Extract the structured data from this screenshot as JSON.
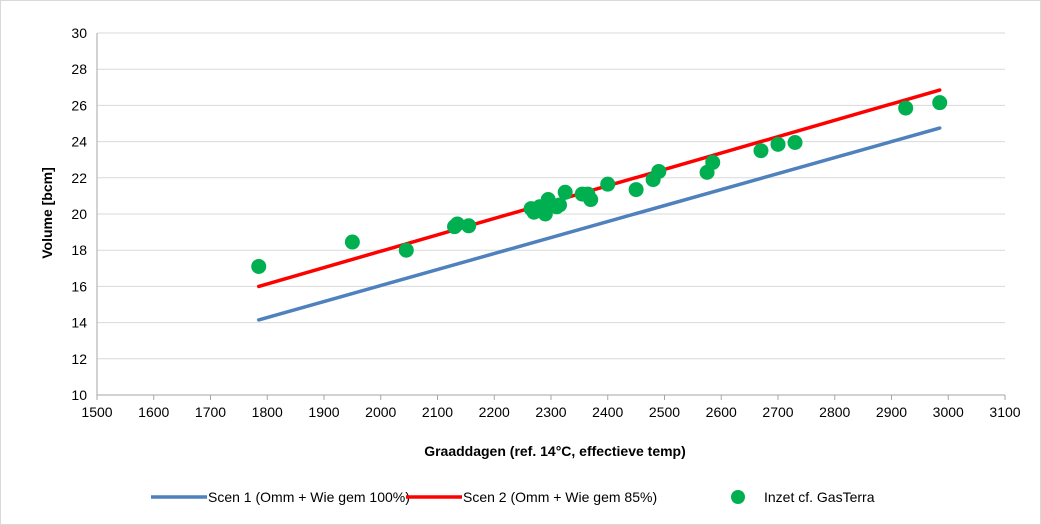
{
  "chart_data": {
    "type": "scatter",
    "xlabel": "Graaddagen (ref. 14°C, effectieve temp)",
    "ylabel": "Volume [bcm]",
    "xlim": [
      1500,
      3100
    ],
    "ylim": [
      10,
      30
    ],
    "xticks": [
      1500,
      1600,
      1700,
      1800,
      1900,
      2000,
      2100,
      2200,
      2300,
      2400,
      2500,
      2600,
      2700,
      2800,
      2900,
      3000,
      3100
    ],
    "yticks": [
      10,
      12,
      14,
      16,
      18,
      20,
      22,
      24,
      26,
      28,
      30
    ],
    "grid": "horizontal",
    "legend_position": "bottom",
    "series": [
      {
        "name": "Scen 1 (Omm + Wie gem 100%)",
        "kind": "line",
        "color": "#4f81bd",
        "points": [
          [
            1785,
            14.15
          ],
          [
            2985,
            24.75
          ]
        ]
      },
      {
        "name": "Scen 2 (Omm + Wie gem 85%)",
        "kind": "line",
        "color": "#ff0000",
        "points": [
          [
            1785,
            16.0
          ],
          [
            2985,
            26.85
          ]
        ]
      },
      {
        "name": "Inzet cf. GasTerra",
        "kind": "scatter",
        "color": "#00b050",
        "points": [
          [
            1785,
            17.1
          ],
          [
            1950,
            18.45
          ],
          [
            2045,
            18.0
          ],
          [
            2130,
            19.3
          ],
          [
            2135,
            19.45
          ],
          [
            2155,
            19.35
          ],
          [
            2265,
            20.3
          ],
          [
            2270,
            20.1
          ],
          [
            2280,
            20.4
          ],
          [
            2290,
            20.0
          ],
          [
            2295,
            20.55
          ],
          [
            2295,
            20.8
          ],
          [
            2310,
            20.4
          ],
          [
            2315,
            20.5
          ],
          [
            2325,
            21.2
          ],
          [
            2355,
            21.1
          ],
          [
            2365,
            21.1
          ],
          [
            2370,
            20.8
          ],
          [
            2400,
            21.65
          ],
          [
            2450,
            21.35
          ],
          [
            2480,
            21.9
          ],
          [
            2490,
            22.35
          ],
          [
            2575,
            22.3
          ],
          [
            2585,
            22.85
          ],
          [
            2670,
            23.5
          ],
          [
            2700,
            23.85
          ],
          [
            2730,
            23.95
          ],
          [
            2925,
            25.85
          ],
          [
            2985,
            26.15
          ]
        ]
      }
    ]
  }
}
